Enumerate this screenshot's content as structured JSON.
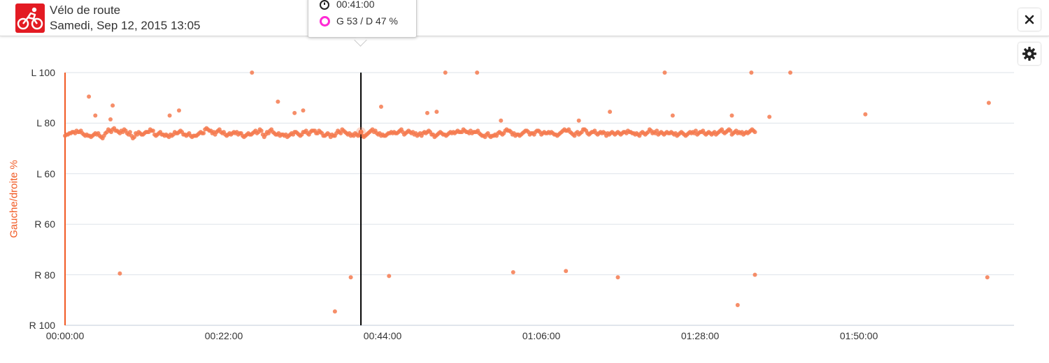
{
  "header": {
    "title": "Vélo de route",
    "date": "Samedi, Sep 12, 2015 13:05",
    "sport_icon": "cycling-icon",
    "close_icon": "close-icon",
    "settings_icon": "gear-icon"
  },
  "tooltip": {
    "time": "00:41:00",
    "balance": "G 53 / D 47 %",
    "time_icon": "stopwatch-icon",
    "marker_icon": "ring-marker-icon"
  },
  "colors": {
    "accent": "#e31b23",
    "series": "#f47a4f",
    "axis": "#f15a24",
    "cursor": "#000000",
    "marker": "#ff2ad4"
  },
  "chart_data": {
    "type": "scatter",
    "ylabel": "Gauche/droite %",
    "yticks": [
      "L 100",
      "L 80",
      "L 60",
      "R 60",
      "R 80",
      "R 100"
    ],
    "xticks": [
      "00:00:00",
      "00:22:00",
      "00:44:00",
      "01:06:00",
      "01:28:00",
      "01:50:00"
    ],
    "xlim_minutes": [
      0,
      131.5
    ],
    "ylim": [
      -100,
      100
    ],
    "y_note": "positive = left %, negative = right %",
    "cursor_minutes": 41,
    "cursor_value": 53,
    "grid": "horizontal",
    "sample_interval_minutes": 0.2,
    "values": [
      50,
      51,
      51,
      52,
      52,
      53,
      53,
      52,
      54,
      53,
      53,
      54,
      52,
      51,
      50,
      51,
      50,
      50,
      49,
      50,
      51,
      52,
      51,
      52,
      50,
      49,
      48,
      50,
      52,
      53,
      55,
      54,
      53,
      55,
      56,
      54,
      54,
      53,
      52,
      54,
      53,
      55,
      54,
      52,
      51,
      53,
      50,
      48,
      49,
      52,
      51,
      53,
      52,
      51,
      51,
      52,
      53,
      53,
      53,
      55,
      54,
      54,
      51,
      50,
      51,
      52,
      53,
      51,
      51,
      50,
      51,
      50,
      49,
      51,
      50,
      51,
      53,
      52,
      52,
      53,
      54,
      53,
      51,
      51,
      50,
      51,
      52,
      50,
      49,
      50,
      50,
      50,
      51,
      52,
      53,
      52,
      52,
      55,
      56,
      55,
      54,
      54,
      52,
      53,
      51,
      53,
      54,
      55,
      53,
      52,
      53,
      51,
      50,
      51,
      52,
      51,
      52,
      53,
      52,
      53,
      51,
      52,
      52,
      50,
      49,
      50,
      51,
      52,
      51,
      51,
      52,
      53,
      54,
      52,
      53,
      55,
      54,
      51,
      49,
      51,
      53,
      52,
      54,
      55,
      53,
      52,
      51,
      51,
      52,
      50,
      51,
      51,
      50,
      51,
      49,
      50,
      51,
      52,
      51,
      53,
      53,
      52,
      51,
      50,
      51,
      53,
      53,
      54,
      52,
      51,
      53,
      54,
      54,
      54,
      52,
      52,
      54,
      53,
      52,
      50,
      50,
      51,
      52,
      51,
      49,
      51,
      50,
      50,
      52,
      54,
      53,
      52,
      55,
      54,
      53,
      52,
      51,
      52,
      50,
      51,
      50,
      52,
      51,
      50,
      51,
      50,
      50,
      49,
      50,
      51,
      52,
      53,
      54,
      55,
      53,
      54,
      52,
      51,
      52,
      50,
      51,
      50,
      50,
      51,
      52,
      52,
      53,
      52,
      53,
      52,
      52,
      53,
      54,
      55,
      53,
      51,
      52,
      53,
      54,
      53,
      52,
      53,
      51,
      52,
      50,
      51,
      52,
      50,
      52,
      53,
      52,
      53,
      54,
      53,
      51,
      51,
      49,
      50,
      51,
      52,
      53,
      52,
      51,
      51,
      50,
      51,
      52,
      53,
      52,
      53,
      52,
      53,
      54,
      53,
      53,
      53,
      55,
      54,
      53,
      53,
      52,
      54,
      52,
      53,
      53,
      53,
      54,
      52,
      51,
      50,
      50,
      49,
      51,
      52,
      50,
      49,
      50,
      50,
      51,
      50,
      52,
      53,
      52,
      51,
      52,
      54,
      55,
      54,
      54,
      53,
      51,
      52,
      50,
      51,
      51,
      50,
      51,
      52,
      53,
      54,
      54,
      53,
      51,
      52,
      52,
      51,
      53,
      54,
      54,
      53,
      51,
      52,
      53,
      52,
      52,
      53,
      52,
      53,
      52,
      51,
      51,
      50,
      51,
      52,
      53,
      54,
      55,
      54,
      54,
      55,
      53,
      52,
      51,
      50,
      52,
      53,
      51,
      52,
      53,
      55,
      55,
      54,
      52,
      51,
      52,
      53,
      53,
      54,
      52,
      51,
      52,
      53,
      52,
      53,
      52,
      50,
      52,
      51,
      52,
      53,
      52,
      51,
      52,
      53,
      52,
      51,
      52,
      53,
      53,
      52,
      54,
      53,
      53,
      52,
      52,
      51,
      52,
      51,
      50,
      52,
      53,
      52,
      51,
      52,
      53,
      55,
      54,
      52,
      53,
      52,
      54,
      51,
      52,
      53,
      52,
      51,
      52,
      53,
      52,
      52,
      53,
      52,
      51,
      52,
      50,
      51,
      52,
      53,
      52,
      51,
      50,
      51,
      52,
      53,
      52,
      53,
      52,
      54,
      51,
      52,
      53,
      53,
      54,
      52,
      51,
      52,
      53,
      52,
      51,
      52,
      53,
      51,
      52,
      53,
      54,
      55,
      53,
      52,
      53,
      54,
      55,
      54,
      51,
      52,
      53,
      54,
      52,
      53,
      52,
      53,
      51,
      52,
      53,
      52,
      53,
      54,
      55,
      54,
      53
    ],
    "outliers": [
      {
        "x": 3.3,
        "y": 81
      },
      {
        "x": 4.2,
        "y": 66
      },
      {
        "x": 6.6,
        "y": 74
      },
      {
        "x": 6.3,
        "y": 63
      },
      {
        "x": 7.6,
        "y": -59
      },
      {
        "x": 14.5,
        "y": 66
      },
      {
        "x": 15.8,
        "y": 70
      },
      {
        "x": 25.9,
        "y": 100
      },
      {
        "x": 29.5,
        "y": 77
      },
      {
        "x": 31.8,
        "y": 68
      },
      {
        "x": 33.0,
        "y": 70
      },
      {
        "x": 37.4,
        "y": -89
      },
      {
        "x": 39.6,
        "y": -62
      },
      {
        "x": 43.8,
        "y": 73
      },
      {
        "x": 44.9,
        "y": -61
      },
      {
        "x": 50.2,
        "y": 68
      },
      {
        "x": 51.5,
        "y": 69
      },
      {
        "x": 52.7,
        "y": 100
      },
      {
        "x": 57.1,
        "y": 100
      },
      {
        "x": 62.1,
        "y": -58
      },
      {
        "x": 69.4,
        "y": -57
      },
      {
        "x": 75.5,
        "y": 69
      },
      {
        "x": 76.6,
        "y": -62
      },
      {
        "x": 83.1,
        "y": 100
      },
      {
        "x": 84.2,
        "y": 66
      },
      {
        "x": 92.4,
        "y": 66
      },
      {
        "x": 93.2,
        "y": -84
      },
      {
        "x": 95.1,
        "y": 100
      },
      {
        "x": 95.6,
        "y": -60
      },
      {
        "x": 97.6,
        "y": 65
      },
      {
        "x": 100.5,
        "y": 100
      },
      {
        "x": 110.9,
        "y": 67
      },
      {
        "x": 128.0,
        "y": 76
      },
      {
        "x": 127.8,
        "y": -62
      },
      {
        "x": 60.4,
        "y": 62
      },
      {
        "x": 71.2,
        "y": 62
      }
    ]
  }
}
